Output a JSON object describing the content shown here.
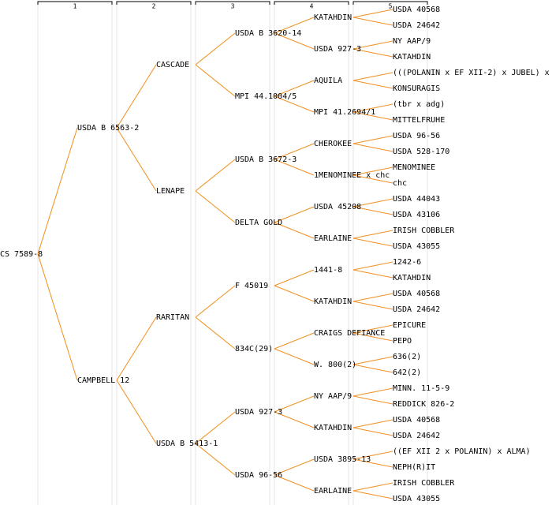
{
  "columns": [
    "1",
    "2",
    "3",
    "4",
    "5"
  ],
  "root": {
    "label": "CS 7589-8",
    "children": [
      {
        "label": "USDA B 6563-2",
        "children": [
          {
            "label": "CASCADE",
            "children": [
              {
                "label": "USDA B 3620-14",
                "children": [
                  {
                    "label": "KATAHDIN",
                    "children": [
                      {
                        "label": "USDA 40568"
                      },
                      {
                        "label": "USDA 24642"
                      }
                    ]
                  },
                  {
                    "label": "USDA 927-3",
                    "children": [
                      {
                        "label": "NY AAP/9"
                      },
                      {
                        "label": "KATAHDIN"
                      }
                    ]
                  }
                ]
              },
              {
                "label": "MPI 44.1004/5",
                "children": [
                  {
                    "label": "AQUILA",
                    "children": [
                      {
                        "label": "(((POLANIN x EF XII-2) x JUBEL) x"
                      },
                      {
                        "label": "KONSURAGIS"
                      }
                    ]
                  },
                  {
                    "label": "MPI 41.2694/1",
                    "children": [
                      {
                        "label": "(tbr x adg)"
                      },
                      {
                        "label": "MITTELFRUHE"
                      }
                    ]
                  }
                ]
              }
            ]
          },
          {
            "label": "LENAPE",
            "children": [
              {
                "label": "USDA B 3672-3",
                "children": [
                  {
                    "label": "CHEROKEE",
                    "children": [
                      {
                        "label": "USDA 96-56"
                      },
                      {
                        "label": "USDA 528-170"
                      }
                    ]
                  },
                  {
                    "label": "1MENOMINEE x chc",
                    "children": [
                      {
                        "label": "MENOMINEE"
                      },
                      {
                        "label": "chc"
                      }
                    ]
                  }
                ]
              },
              {
                "label": "DELTA GOLD",
                "children": [
                  {
                    "label": "USDA 45208",
                    "children": [
                      {
                        "label": "USDA 44043"
                      },
                      {
                        "label": "USDA 43106"
                      }
                    ]
                  },
                  {
                    "label": "EARLAINE",
                    "children": [
                      {
                        "label": "IRISH COBBLER"
                      },
                      {
                        "label": "USDA 43055"
                      }
                    ]
                  }
                ]
              }
            ]
          }
        ]
      },
      {
        "label": "CAMPBELL 12",
        "children": [
          {
            "label": "RARITAN",
            "children": [
              {
                "label": "F 45019",
                "children": [
                  {
                    "label": "1441-8",
                    "children": [
                      {
                        "label": "1242-6"
                      },
                      {
                        "label": "KATAHDIN"
                      }
                    ]
                  },
                  {
                    "label": "KATAHDIN",
                    "children": [
                      {
                        "label": "USDA 40568"
                      },
                      {
                        "label": "USDA 24642"
                      }
                    ]
                  }
                ]
              },
              {
                "label": "834C(29)",
                "children": [
                  {
                    "label": "CRAIGS DEFIANCE",
                    "children": [
                      {
                        "label": "EPICURE"
                      },
                      {
                        "label": "PEPO"
                      }
                    ]
                  },
                  {
                    "label": "W. 800(2)",
                    "children": [
                      {
                        "label": "636(2)"
                      },
                      {
                        "label": "642(2)"
                      }
                    ]
                  }
                ]
              }
            ]
          },
          {
            "label": "USDA B 5413-1",
            "children": [
              {
                "label": "USDA 927-3",
                "children": [
                  {
                    "label": "NY AAP/9",
                    "children": [
                      {
                        "label": "MINN. 11-5-9"
                      },
                      {
                        "label": "REDDICK 826-2"
                      }
                    ]
                  },
                  {
                    "label": "KATAHDIN",
                    "children": [
                      {
                        "label": "USDA 40568"
                      },
                      {
                        "label": "USDA 24642"
                      }
                    ]
                  }
                ]
              },
              {
                "label": "USDA 96-56",
                "children": [
                  {
                    "label": "USDA 3895-13",
                    "children": [
                      {
                        "label": "((EF XII 2 x POLANIN) x ALMA)"
                      },
                      {
                        "label": "NEPH(R)IT"
                      }
                    ]
                  },
                  {
                    "label": "EARLAINE",
                    "children": [
                      {
                        "label": "IRISH COBBLER"
                      },
                      {
                        "label": "USDA 43055"
                      }
                    ]
                  }
                ]
              }
            ]
          }
        ]
      }
    ]
  }
}
